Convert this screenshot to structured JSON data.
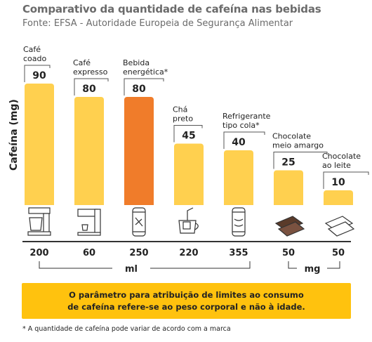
{
  "title": "Comparativo da quantidade de cafeína nas bebidas",
  "subtitle": "Fonte: EFSA - Autoridade Europeia de Segurança Alimentar",
  "chart_data": {
    "type": "bar",
    "ylabel": "Cafeína (mg)",
    "categories": [
      "Café coado",
      "Café expresso",
      "Bebida energética*",
      "Chá preto",
      "Refrigerante tipo cola*",
      "Chocolate meio amargo",
      "Chocolate ao leite"
    ],
    "category_lines": [
      [
        "Café",
        "coado"
      ],
      [
        "Café",
        "expresso"
      ],
      [
        "Bebida",
        "energética*"
      ],
      [
        "Chá",
        "preto"
      ],
      [
        "Refrigerante",
        "tipo cola*"
      ],
      [
        "Chocolate",
        "meio amargo"
      ],
      [
        "Chocolate",
        "ao leite"
      ]
    ],
    "values": [
      90,
      80,
      80,
      45,
      40,
      25,
      10
    ],
    "highlight_index": 2,
    "colors": {
      "bar": "#ffd04f",
      "highlight": "#f07c2a",
      "accent": "#ffc20e"
    },
    "icons": [
      "coffee-maker-icon",
      "espresso-machine-icon",
      "energy-drink-can-icon",
      "tea-cup-icon",
      "cola-can-icon",
      "dark-chocolate-icon",
      "milk-chocolate-icon"
    ],
    "serving_sizes": [
      "200",
      "60",
      "250",
      "220",
      "355",
      "50",
      "50"
    ],
    "unit_ml": "ml",
    "unit_mg": "mg"
  },
  "note": "O parâmetro para atribuição de limites ao consumo\nde cafeína refere-se ao peso corporal e não à idade.",
  "footnote": "* A quantidade de cafeína pode variar de acordo com a marca"
}
